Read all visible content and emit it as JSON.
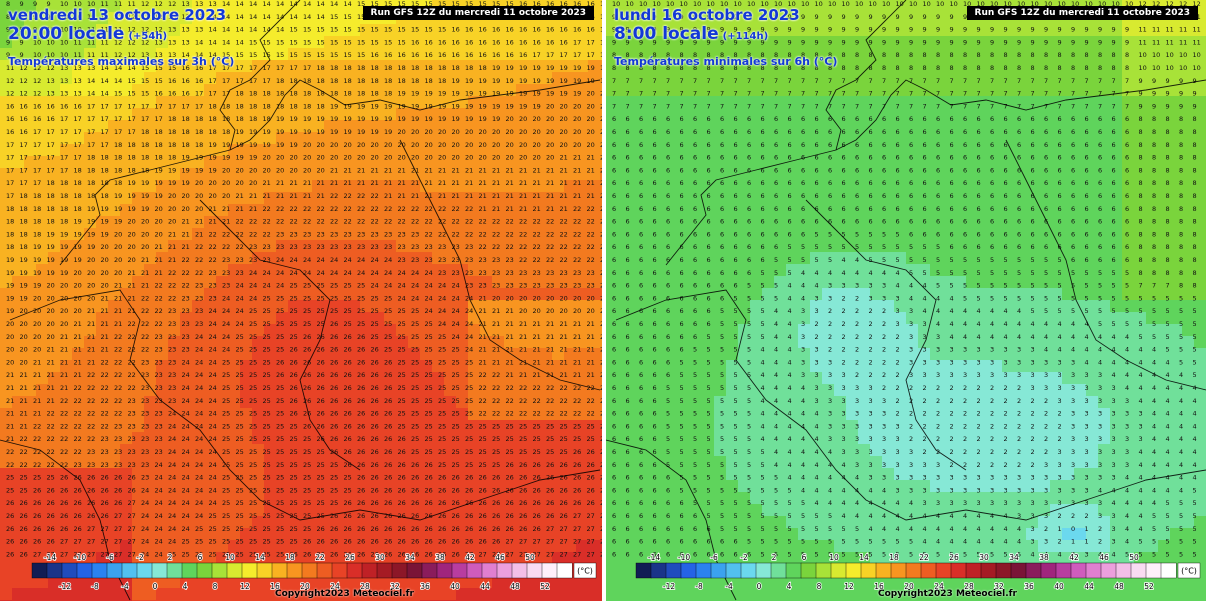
{
  "panels": [
    {
      "run_label": "Run GFS 12Z du mercredi 11 octobre 2023",
      "date": "vendredi 13 octobre 2023",
      "time": "20:00 locale",
      "offset": "(+54h)",
      "parameter": "Températures maximales sur 3h (°C)",
      "copyright": "Copyright2023 Meteociel.fr"
    },
    {
      "run_label": "Run GFS 12Z du mercredi 11 octobre 2023",
      "date": "lundi 16 octobre 2023",
      "time": "8:00 locale",
      "offset": "(+114h)",
      "parameter": "Températures minimales sur 6h (°C)",
      "copyright": "Copyright2023 Meteociel.fr"
    }
  ],
  "legend": {
    "unit": "(°C)",
    "upper_labels": [
      "-14",
      "-10",
      "-6",
      "-2",
      "2",
      "6",
      "10",
      "14",
      "18",
      "22",
      "26",
      "30",
      "34",
      "38",
      "42",
      "46",
      "50"
    ],
    "lower_labels": [
      "-12",
      "-8",
      "-4",
      "0",
      "4",
      "8",
      "12",
      "16",
      "20",
      "24",
      "28",
      "32",
      "36",
      "40",
      "44",
      "48",
      "52"
    ],
    "colors": [
      "#111d54",
      "#1a3489",
      "#1f4cbd",
      "#2563e6",
      "#2b82ef",
      "#3ba2ef",
      "#52c0ef",
      "#6bd8ee",
      "#86e8d6",
      "#70e09a",
      "#5fd45c",
      "#7ad43c",
      "#a8e238",
      "#d8ea30",
      "#f5ec2c",
      "#f8d226",
      "#f9b221",
      "#f89520",
      "#f37a1f",
      "#ee5d22",
      "#e84326",
      "#d92e28",
      "#bf2126",
      "#a51b24",
      "#8c1728",
      "#7a1437",
      "#8a1c5c",
      "#a0257d",
      "#b83da0",
      "#cf5cbd",
      "#e07fd0",
      "#ec9fdd",
      "#f3bfe8",
      "#f9dbf2",
      "#fef0fa",
      "#ffffff"
    ]
  }
}
